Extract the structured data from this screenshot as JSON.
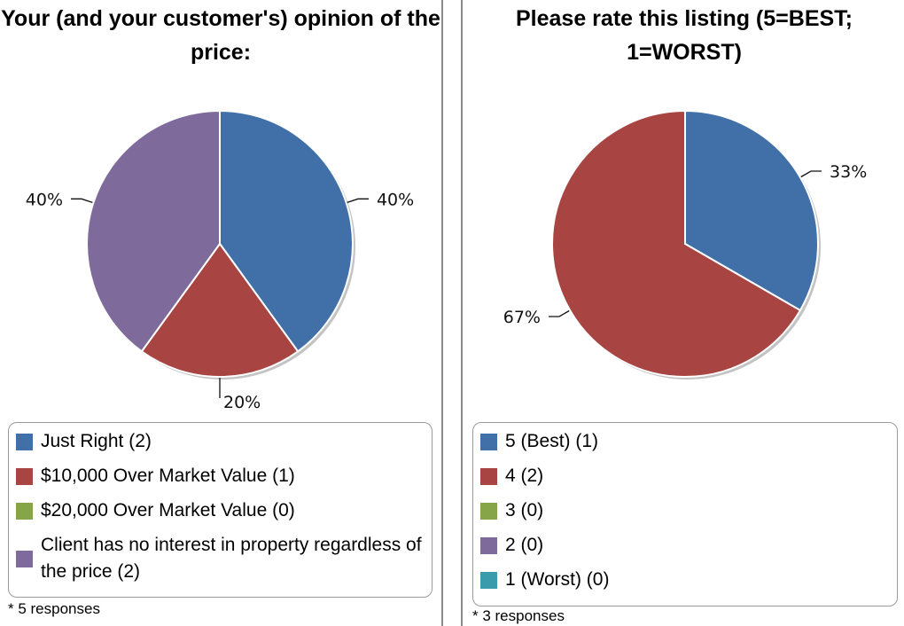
{
  "chart_data": [
    {
      "type": "pie",
      "title": "Your (and your customer's) opinion of the price:",
      "slices": [
        {
          "label": "Just Right (2)",
          "value": 2,
          "percent_label": "40%",
          "color": "#4170a8"
        },
        {
          "label": "$10,000 Over Market Value (1)",
          "value": 1,
          "percent_label": "20%",
          "color": "#a84543"
        },
        {
          "label": "$20,000 Over Market Value (0)",
          "value": 0,
          "percent_label": "",
          "color": "#86a549"
        },
        {
          "label": "Client has no interest in property regardless of the price (2)",
          "value": 2,
          "percent_label": "40%",
          "color": "#7e6b9c"
        }
      ],
      "footnote": "* 5 responses",
      "legend": "bottom"
    },
    {
      "type": "pie",
      "title": "Please rate this listing (5=BEST; 1=WORST)",
      "slices": [
        {
          "label": "5 (Best) (1)",
          "value": 1,
          "percent_label": "33%",
          "color": "#4170a8"
        },
        {
          "label": "4 (2)",
          "value": 2,
          "percent_label": "67%",
          "color": "#a84543"
        },
        {
          "label": "3 (0)",
          "value": 0,
          "percent_label": "",
          "color": "#86a549"
        },
        {
          "label": "2 (0)",
          "value": 0,
          "percent_label": "",
          "color": "#7e6b9c"
        },
        {
          "label": "1 (Worst) (0)",
          "value": 0,
          "percent_label": "",
          "color": "#3a9bad"
        }
      ],
      "footnote": "* 3 responses",
      "legend": "bottom"
    }
  ]
}
